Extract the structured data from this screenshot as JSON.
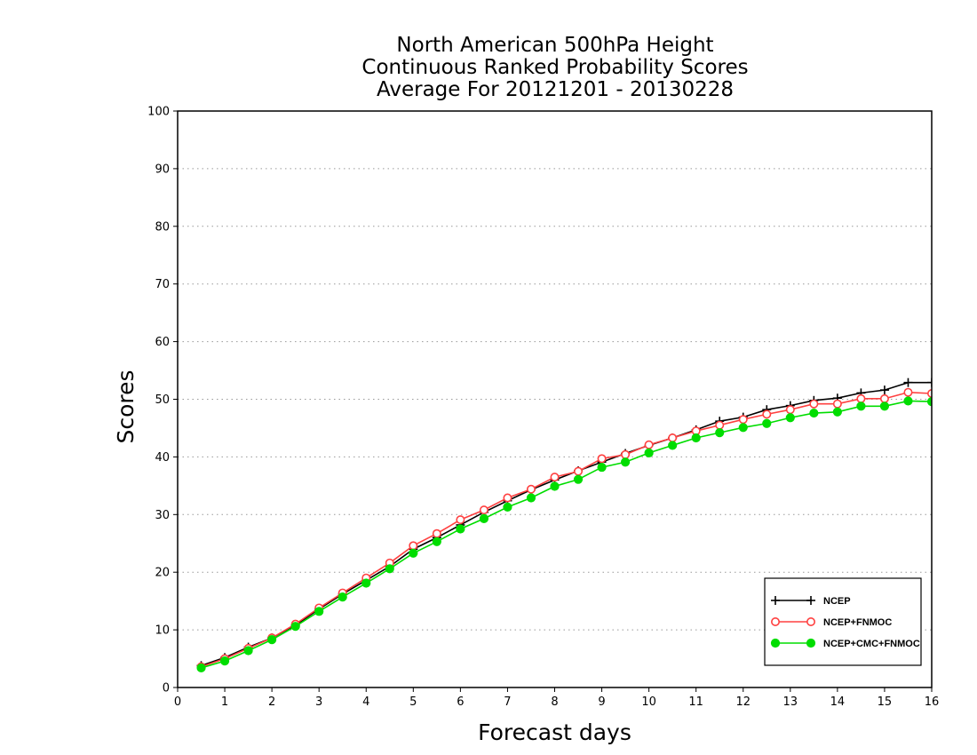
{
  "chart_data": {
    "type": "line",
    "title": [
      "North American 500hPa Height",
      "Continuous Ranked Probability Scores",
      "Average For 20121201 - 20130228"
    ],
    "xlabel": "Forecast days",
    "ylabel": "Scores",
    "xlim": [
      0,
      16
    ],
    "ylim": [
      0,
      100
    ],
    "xticks": [
      "0",
      "1",
      "2",
      "3",
      "4",
      "5",
      "6",
      "7",
      "8",
      "9",
      "10",
      "11",
      "12",
      "13",
      "14",
      "15",
      "16"
    ],
    "yticks": [
      "0",
      "10",
      "20",
      "30",
      "40",
      "50",
      "60",
      "70",
      "80",
      "90",
      "100"
    ],
    "grid": "horizontal dotted",
    "legend_position": "bottom-right",
    "x": [
      0.5,
      1,
      1.5,
      2,
      2.5,
      3,
      3.5,
      4,
      4.5,
      5,
      5.5,
      6,
      6.5,
      7,
      7.5,
      8,
      8.5,
      9,
      9.5,
      10,
      10.5,
      11,
      11.5,
      12,
      12.5,
      13,
      13.5,
      14,
      14.5,
      15,
      15.5,
      16
    ],
    "series": [
      {
        "name": "NCEP",
        "color": "#000000",
        "marker": "plus",
        "values": [
          3.8,
          5.2,
          7.0,
          8.6,
          10.8,
          13.6,
          16.2,
          18.6,
          21.0,
          24.0,
          26.0,
          28.2,
          30.4,
          32.4,
          34.3,
          36.0,
          37.6,
          39.1,
          40.6,
          42.0,
          43.3,
          44.7,
          46.2,
          46.9,
          48.2,
          48.9,
          49.8,
          50.2,
          51.1,
          51.6,
          52.9,
          52.9
        ]
      },
      {
        "name": "NCEP+FNMOC",
        "color": "#ff4040",
        "marker": "open-circle",
        "values": [
          3.6,
          5.0,
          6.8,
          8.6,
          11.0,
          13.8,
          16.4,
          19.0,
          21.6,
          24.6,
          26.7,
          29.1,
          30.8,
          32.9,
          34.4,
          36.5,
          37.5,
          39.7,
          40.4,
          42.1,
          43.3,
          44.5,
          45.5,
          46.5,
          47.4,
          48.2,
          49.2,
          49.2,
          50.1,
          50.1,
          51.2,
          51.0
        ]
      },
      {
        "name": "NCEP+CMC+FNMOC",
        "color": "#00dd00",
        "marker": "filled-circle",
        "values": [
          3.4,
          4.6,
          6.4,
          8.3,
          10.6,
          13.2,
          15.7,
          18.1,
          20.6,
          23.3,
          25.3,
          27.5,
          29.3,
          31.3,
          32.9,
          34.9,
          36.1,
          38.2,
          39.1,
          40.7,
          42.0,
          43.3,
          44.2,
          45.1,
          45.8,
          46.8,
          47.6,
          47.8,
          48.8,
          48.8,
          49.7,
          49.6
        ]
      }
    ]
  }
}
